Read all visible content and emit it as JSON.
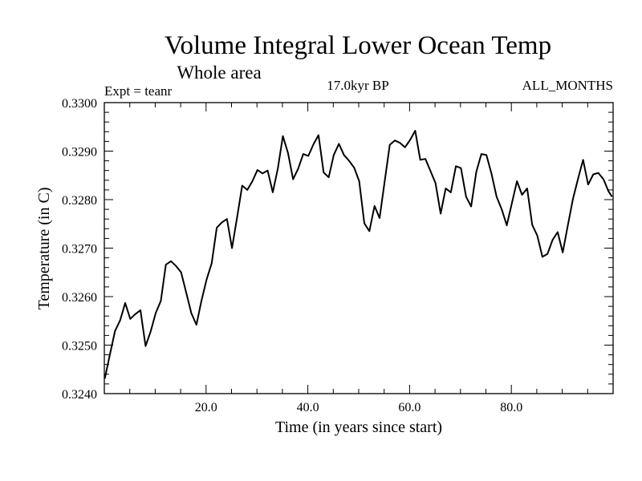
{
  "chart_data": {
    "type": "line",
    "title": "Volume Integral Lower Ocean Temp",
    "subtitle": "Whole area",
    "annotations": {
      "left": "Expt = teanr",
      "center": "17.0kyr BP",
      "right": "ALL_MONTHS"
    },
    "xlabel": "Time (in years since start)",
    "ylabel": "Temperature (in C)",
    "xlim": [
      0,
      100
    ],
    "ylim": [
      0.324,
      0.33
    ],
    "x_ticks": [
      20,
      40,
      60,
      80
    ],
    "x_tick_labels": [
      "20.0",
      "40.0",
      "60.0",
      "80.0"
    ],
    "x_minor_step": 5,
    "y_ticks": [
      0.324,
      0.325,
      0.326,
      0.327,
      0.328,
      0.329,
      0.33
    ],
    "y_tick_labels": [
      "0.3240",
      "0.3250",
      "0.3260",
      "0.3270",
      "0.3280",
      "0.3290",
      "0.3300"
    ],
    "y_minor_step": 0.0002,
    "grid": false,
    "legend": "none",
    "line_color": "#000000",
    "series": [
      {
        "name": "Volume Integral Lower Ocean Temp",
        "x": [
          0.1,
          1.1,
          2.1,
          3.1,
          4.1,
          5.1,
          6.1,
          7.1,
          8.1,
          9.1,
          10.1,
          11.1,
          12.1,
          13.1,
          14.1,
          15.1,
          16.1,
          17.1,
          18.1,
          19.1,
          20.1,
          21.1,
          22.1,
          23.1,
          24.1,
          25.1,
          26.1,
          27.1,
          28.1,
          29.1,
          30.1,
          31.1,
          32.1,
          33.1,
          34.1,
          35.1,
          36.1,
          37.1,
          38.1,
          39.1,
          40.1,
          41.1,
          42.1,
          43.1,
          44.1,
          45.1,
          46.1,
          47.1,
          48.1,
          49.1,
          50.1,
          51.1,
          52.1,
          53.1,
          54.1,
          55.1,
          56.1,
          57.1,
          58.1,
          59.1,
          60.1,
          61.1,
          62.1,
          63.1,
          64.1,
          65.1,
          66.1,
          67.1,
          68.1,
          69.1,
          70.1,
          71.1,
          72.1,
          73.1,
          74.1,
          75.1,
          76.1,
          77.1,
          78.1,
          79.1,
          80.1,
          81.1,
          82.1,
          83.1,
          84.1,
          85.1,
          86.1,
          87.1,
          88.1,
          89.1,
          90.1,
          91.1,
          92.1,
          93.1,
          94.1,
          95.1,
          96.1,
          97.1,
          98.1,
          99.1,
          99.8
        ],
        "values": [
          0.32431,
          0.32481,
          0.32529,
          0.32551,
          0.32587,
          0.32554,
          0.32564,
          0.32572,
          0.32498,
          0.32528,
          0.32566,
          0.32591,
          0.32666,
          0.32673,
          0.32663,
          0.3265,
          0.32608,
          0.32566,
          0.32542,
          0.32592,
          0.32635,
          0.32669,
          0.32742,
          0.32753,
          0.3276,
          0.327,
          0.32764,
          0.32829,
          0.3282,
          0.32838,
          0.32861,
          0.32854,
          0.3286,
          0.32815,
          0.32864,
          0.32931,
          0.32896,
          0.32842,
          0.32864,
          0.32894,
          0.3289,
          0.32914,
          0.32933,
          0.32856,
          0.32846,
          0.32892,
          0.32915,
          0.32892,
          0.3288,
          0.32866,
          0.32838,
          0.32751,
          0.32735,
          0.32787,
          0.32762,
          0.32837,
          0.32913,
          0.32922,
          0.32917,
          0.32908,
          0.32923,
          0.32942,
          0.32882,
          0.32884,
          0.32859,
          0.32834,
          0.32771,
          0.32823,
          0.32815,
          0.32869,
          0.32865,
          0.32806,
          0.32786,
          0.32857,
          0.32894,
          0.32892,
          0.32853,
          0.32806,
          0.3278,
          0.32747,
          0.32792,
          0.32838,
          0.3281,
          0.32823,
          0.32748,
          0.32726,
          0.32682,
          0.32688,
          0.32717,
          0.32733,
          0.32691,
          0.32747,
          0.32801,
          0.32843,
          0.32882,
          0.32831,
          0.32852,
          0.32855,
          0.32842,
          0.32817,
          0.32806
        ]
      }
    ]
  }
}
